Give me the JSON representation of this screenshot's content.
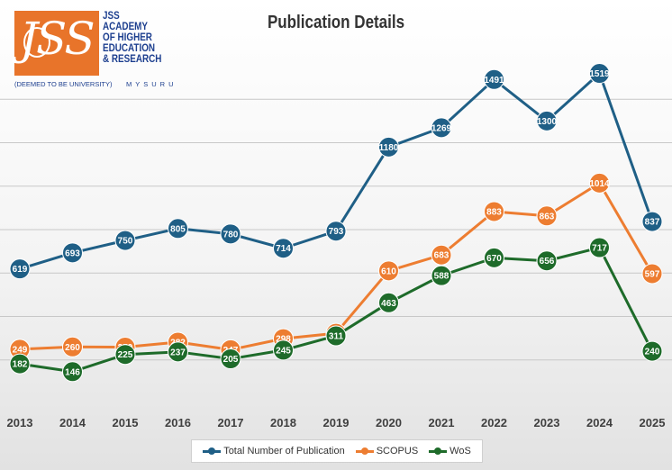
{
  "logo": {
    "mark": "JSS",
    "name_lines": [
      "JSS",
      "ACADEMY",
      "OF HIGHER",
      "EDUCATION",
      "& RESEARCH"
    ],
    "status": "(DEEMED TO BE UNIVERSITY)",
    "city": "MYSURU",
    "colors": {
      "orange": "#e8742a",
      "blue": "#1d3f8f"
    }
  },
  "chart_data": {
    "type": "line",
    "title": "Publication Details",
    "xlabel": "",
    "ylabel": "",
    "ylim": [
      0,
      1600
    ],
    "grid": true,
    "legend_position": "bottom",
    "categories": [
      "2013",
      "2014",
      "2015",
      "2016",
      "2017",
      "2018",
      "2019",
      "2020",
      "2021",
      "2022",
      "2023",
      "2024",
      "2025"
    ],
    "series": [
      {
        "name": "Total Number of Publication",
        "color": "#1f5f86",
        "values": [
          619,
          693,
          750,
          805,
          780,
          714,
          793,
          1180,
          1269,
          1491,
          1300,
          1519,
          837
        ]
      },
      {
        "name": "SCOPUS",
        "color": "#ed7d31",
        "values": [
          249,
          260,
          259,
          282,
          247,
          298,
          323,
          610,
          683,
          883,
          863,
          1014,
          597
        ]
      },
      {
        "name": "WoS",
        "color": "#1e6b2a",
        "values": [
          182,
          146,
          225,
          237,
          205,
          245,
          311,
          463,
          588,
          670,
          656,
          717,
          240
        ]
      }
    ]
  }
}
